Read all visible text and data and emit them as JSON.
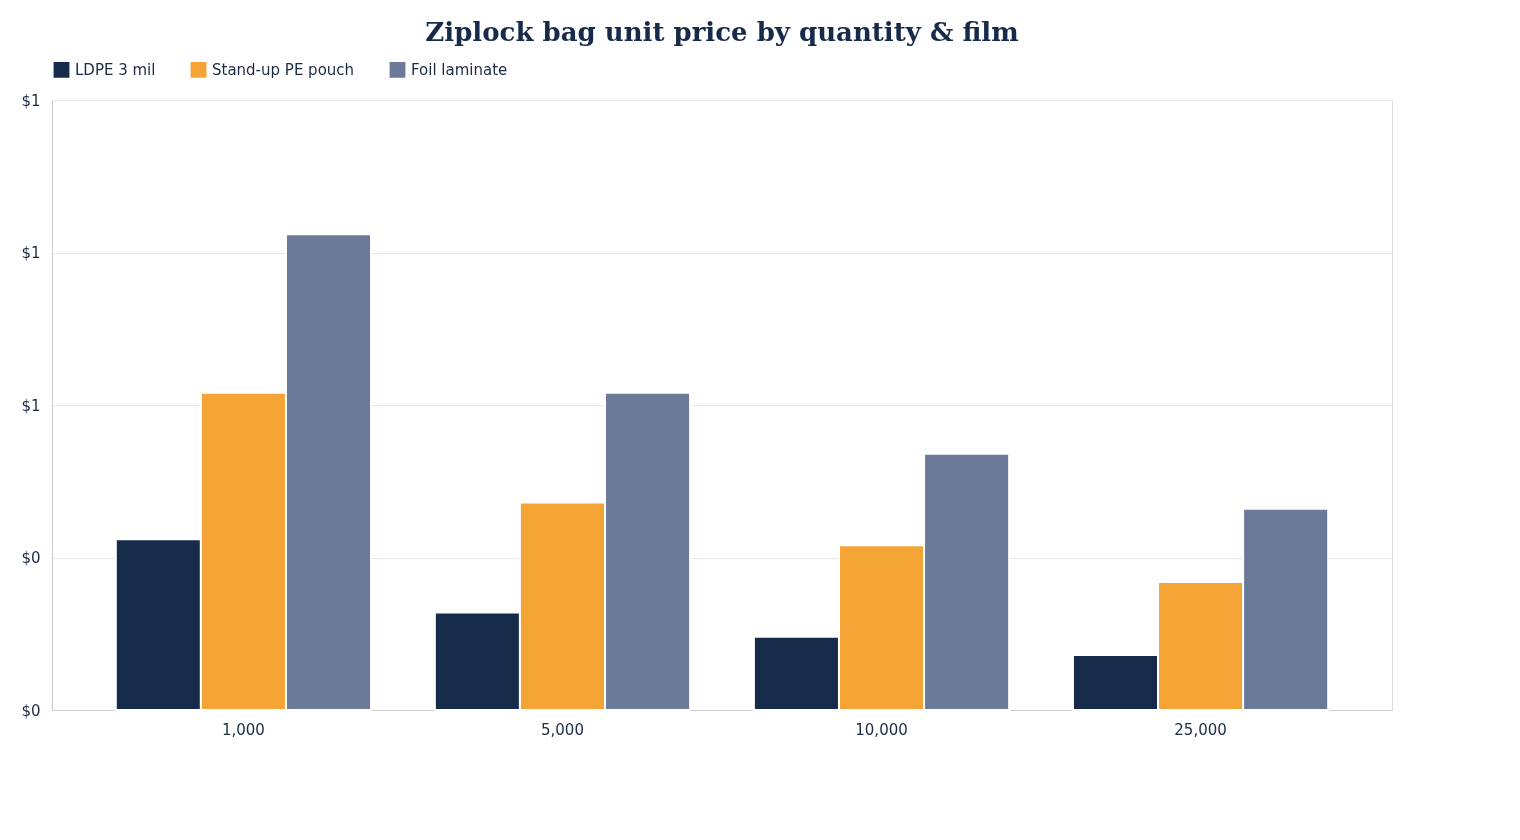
{
  "chart_data": {
    "type": "bar",
    "title": "Ziplock bag unit price by quantity & film",
    "categories": [
      "1,000",
      "5,000",
      "10,000",
      "25,000"
    ],
    "series": [
      {
        "name": "LDPE 3 mil",
        "color": "#162a4a",
        "values": [
          0.28,
          0.16,
          0.12,
          0.09
        ]
      },
      {
        "name": "Stand-up PE pouch",
        "color": "#f4a435",
        "values": [
          0.52,
          0.34,
          0.27,
          0.21
        ]
      },
      {
        "name": "Foil laminate",
        "color": "#6b7a99",
        "values": [
          0.78,
          0.52,
          0.42,
          0.33
        ]
      }
    ],
    "ylim": [
      0,
      1
    ],
    "yticks": [
      {
        "value": 0,
        "label": "$0"
      },
      {
        "value": 0.25,
        "label": "$0"
      },
      {
        "value": 0.5,
        "label": "$1"
      },
      {
        "value": 0.75,
        "label": "$1"
      },
      {
        "value": 1,
        "label": "$1"
      }
    ],
    "grid": "y",
    "legend": "top"
  }
}
